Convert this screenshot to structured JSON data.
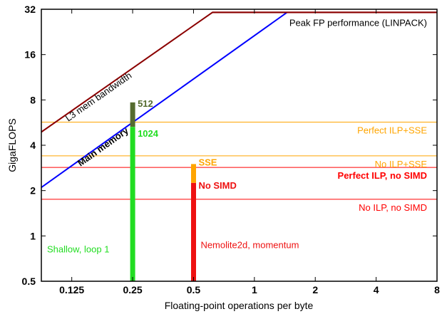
{
  "chart_data": {
    "type": "line",
    "title": "",
    "xlabel": "Floating-point operations per byte",
    "ylabel": "GigaFLOPS",
    "xscale": "log2",
    "yscale": "log2",
    "xlim": [
      0.0884,
      8
    ],
    "ylim": [
      0.5,
      32
    ],
    "xticks": [
      0.125,
      0.25,
      0.5,
      1,
      2,
      4,
      8
    ],
    "xtick_labels": [
      "0.125",
      "0.25",
      "0.5",
      "1",
      "2",
      "4",
      "8"
    ],
    "yticks": [
      0.5,
      1,
      2,
      4,
      8,
      16,
      32
    ],
    "ytick_labels": [
      "0.5",
      "1",
      "2",
      "4",
      "8",
      "16",
      "32"
    ],
    "grid": false,
    "series": [
      {
        "name": "L3 mem bandwidth",
        "color": "#8b0000",
        "points": [
          [
            0.0884,
            4.9
          ],
          [
            0.62,
            30.5
          ],
          [
            8,
            30.5
          ]
        ]
      },
      {
        "name": "Main memory",
        "color": "#0000ff",
        "points": [
          [
            0.0884,
            2.1
          ],
          [
            1.45,
            30.5
          ]
        ]
      },
      {
        "name": "Peak FP performance (LINPACK)",
        "color": "#8b0000",
        "points": [
          [
            0.62,
            30.5
          ],
          [
            8,
            30.5
          ]
        ]
      }
    ],
    "ceilings": [
      {
        "name": "Perfect ILP+SSE",
        "y": 5.7,
        "color": "#ffa500"
      },
      {
        "name": "No ILP+SSE",
        "y": 3.4,
        "color": "#ffa500"
      },
      {
        "name": "Perfect ILP, no SIMD",
        "y": 2.85,
        "color": "#ff0000"
      },
      {
        "name": "No ILP, no SIMD",
        "y": 1.75,
        "color": "#ff0000"
      }
    ],
    "bars": [
      {
        "group": "Shallow, loop 1",
        "x": 0.25,
        "segments": [
          {
            "label": "1024",
            "bottom": 0.5,
            "top": 5.3,
            "color": "#22dd22"
          },
          {
            "label": "512",
            "bottom": 5.3,
            "top": 7.7,
            "color": "#556b2f"
          }
        ]
      },
      {
        "group": "Nemolite2d, momentum",
        "x": 0.5,
        "segments": [
          {
            "label": "No SIMD",
            "bottom": 0.5,
            "top": 2.25,
            "color": "#ee1111"
          },
          {
            "label": "SSE",
            "bottom": 2.25,
            "top": 3.0,
            "color": "#ffa500"
          }
        ]
      }
    ]
  }
}
